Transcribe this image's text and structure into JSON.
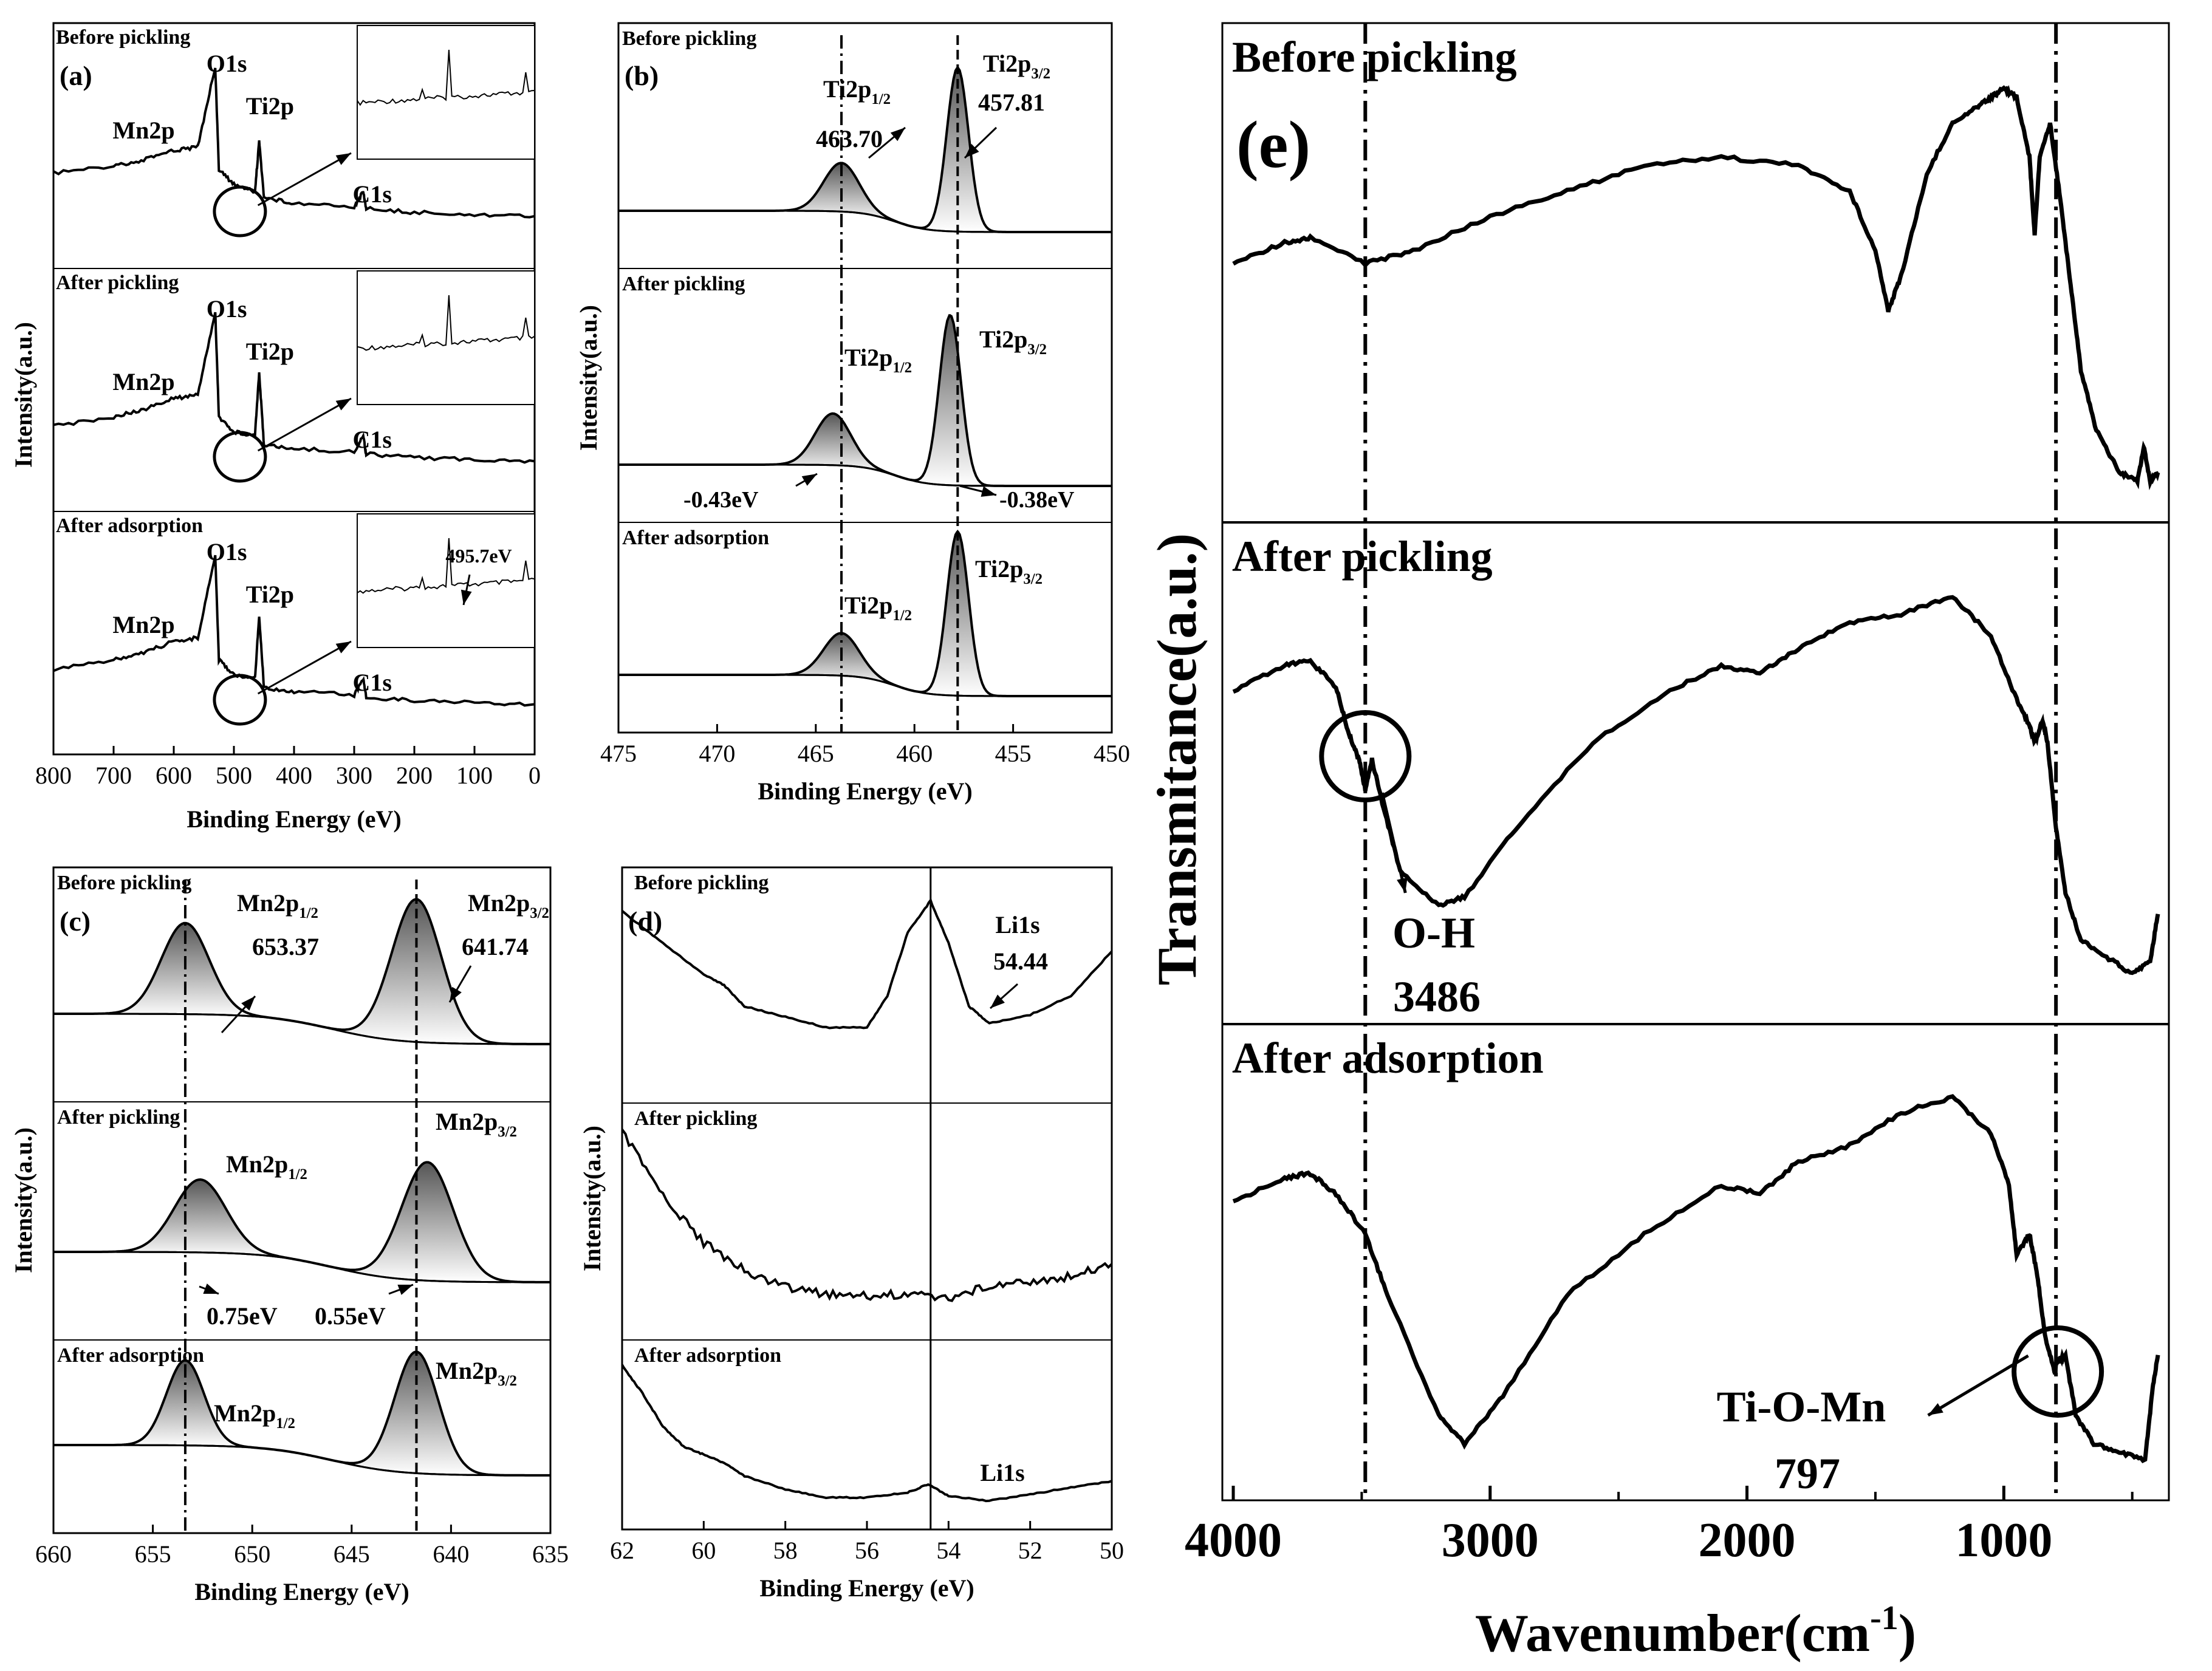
{
  "figure": {
    "background": "#ffffff",
    "ink": "#000000",
    "peak_fill_dark": "#555555"
  },
  "chart_data": [
    {
      "id": "a",
      "type": "line",
      "panel_label": "(a)",
      "xlabel": "Binding Energy (eV)",
      "ylabel": "Intensity(a.u.)",
      "xlim": [
        800,
        0
      ],
      "ticks": [
        "800",
        "700",
        "600",
        "500",
        "400",
        "300",
        "200",
        "100",
        "0"
      ],
      "series": [
        {
          "name": "Before pickling",
          "peaks": [
            "Mn2p",
            "O1s",
            "Ti2p",
            "C1s"
          ],
          "inset": "",
          "values": [
            [
              800,
              0.38
            ],
            [
              700,
              0.42
            ],
            [
              650,
              0.45
            ],
            [
              600,
              0.5
            ],
            [
              560,
              0.52
            ],
            [
              531,
              0.95
            ],
            [
              525,
              0.4
            ],
            [
              500,
              0.32
            ],
            [
              465,
              0.28
            ],
            [
              458,
              0.55
            ],
            [
              450,
              0.25
            ],
            [
              400,
              0.22
            ],
            [
              300,
              0.2
            ],
            [
              285,
              0.28
            ],
            [
              280,
              0.19
            ],
            [
              200,
              0.17
            ],
            [
              100,
              0.16
            ],
            [
              0,
              0.15
            ]
          ]
        },
        {
          "name": "After pickling",
          "peaks": [
            "Mn2p",
            "O1s",
            "Ti2p",
            "C1s"
          ],
          "inset": "",
          "values": [
            [
              800,
              0.33
            ],
            [
              700,
              0.38
            ],
            [
              650,
              0.42
            ],
            [
              600,
              0.48
            ],
            [
              560,
              0.5
            ],
            [
              531,
              0.95
            ],
            [
              525,
              0.38
            ],
            [
              500,
              0.3
            ],
            [
              465,
              0.28
            ],
            [
              458,
              0.62
            ],
            [
              450,
              0.23
            ],
            [
              400,
              0.21
            ],
            [
              300,
              0.19
            ],
            [
              285,
              0.28
            ],
            [
              280,
              0.18
            ],
            [
              200,
              0.16
            ],
            [
              100,
              0.15
            ],
            [
              0,
              0.14
            ]
          ]
        },
        {
          "name": "After adsorption",
          "peaks": [
            "Mn2p",
            "O1s",
            "Ti2p",
            "C1s"
          ],
          "inset": "495.7eV",
          "values": [
            [
              800,
              0.33
            ],
            [
              700,
              0.38
            ],
            [
              650,
              0.42
            ],
            [
              600,
              0.48
            ],
            [
              560,
              0.5
            ],
            [
              531,
              0.95
            ],
            [
              525,
              0.38
            ],
            [
              500,
              0.3
            ],
            [
              465,
              0.28
            ],
            [
              458,
              0.62
            ],
            [
              450,
              0.23
            ],
            [
              400,
              0.21
            ],
            [
              300,
              0.19
            ],
            [
              285,
              0.28
            ],
            [
              280,
              0.18
            ],
            [
              200,
              0.16
            ],
            [
              100,
              0.15
            ],
            [
              0,
              0.14
            ]
          ]
        }
      ]
    },
    {
      "id": "b",
      "type": "line",
      "panel_label": "(b)",
      "xlabel": "Binding Energy (eV)",
      "ylabel": "Intensity(a.u.)",
      "xlim": [
        475,
        450
      ],
      "ticks": [
        "475",
        "470",
        "465",
        "460",
        "455",
        "450"
      ],
      "reference_lines": [
        463.7,
        457.81
      ],
      "series": [
        {
          "name": "Before pickling",
          "peak_labels": [
            "Ti2p",
            "1/2",
            "Ti2p",
            "3/2"
          ],
          "peak_values": [
            "463.70",
            "457.81"
          ],
          "peak_positions": [
            463.7,
            457.81
          ]
        },
        {
          "name": "After pickling",
          "peak_labels": [
            "Ti2p",
            "1/2",
            "Ti2p",
            "3/2"
          ],
          "shifts": [
            "-0.43eV",
            "-0.38eV"
          ],
          "peak_positions": [
            464.13,
            458.19
          ]
        },
        {
          "name": "After adsorption",
          "peak_labels": [
            "Ti2p",
            "1/2",
            "Ti2p",
            "3/2"
          ],
          "peak_positions": [
            463.7,
            457.81
          ]
        }
      ]
    },
    {
      "id": "c",
      "type": "line",
      "panel_label": "(c)",
      "xlabel": "Binding Energy (eV)",
      "ylabel": "Intensity(a.u.)",
      "xlim": [
        660,
        635
      ],
      "ticks": [
        "660",
        "655",
        "650",
        "645",
        "640",
        "635"
      ],
      "reference_lines": [
        653.37,
        641.74
      ],
      "series": [
        {
          "name": "Before pickling",
          "peak_labels": [
            "Mn2p",
            "1/2",
            "Mn2p",
            "3/2"
          ],
          "peak_values": [
            "653.37",
            "641.74"
          ],
          "peak_positions": [
            653.37,
            641.74
          ]
        },
        {
          "name": "After pickling",
          "peak_labels": [
            "Mn2p",
            "1/2",
            "Mn2p",
            "3/2"
          ],
          "shifts": [
            "0.75eV",
            "0.55eV"
          ],
          "peak_positions": [
            652.62,
            641.19
          ]
        },
        {
          "name": "After adsorption",
          "peak_labels": [
            "Mn2p",
            "1/2",
            "Mn2p",
            "3/2"
          ],
          "peak_positions": [
            653.37,
            641.74
          ]
        }
      ]
    },
    {
      "id": "d",
      "type": "line",
      "panel_label": "(d)",
      "xlabel": "Binding Energy (eV)",
      "ylabel": "Intensity(a.u.)",
      "xlim": [
        62,
        50
      ],
      "ticks": [
        "62",
        "60",
        "58",
        "56",
        "54",
        "52",
        "50"
      ],
      "reference_lines": [
        54.44
      ],
      "series": [
        {
          "name": "Before pickling",
          "peak_label": "Li1s",
          "peak_value": "54.44",
          "values": [
            [
              62,
              0.85
            ],
            [
              61,
              0.7
            ],
            [
              60,
              0.55
            ],
            [
              59.5,
              0.5
            ],
            [
              59,
              0.4
            ],
            [
              58,
              0.35
            ],
            [
              57,
              0.3
            ],
            [
              56,
              0.3
            ],
            [
              55.5,
              0.45
            ],
            [
              55,
              0.75
            ],
            [
              54.44,
              0.9
            ],
            [
              54,
              0.7
            ],
            [
              53.5,
              0.4
            ],
            [
              53,
              0.32
            ],
            [
              52,
              0.36
            ],
            [
              51,
              0.45
            ],
            [
              50,
              0.66
            ]
          ]
        },
        {
          "name": "After pickling",
          "peak_label": "",
          "values": [
            [
              62,
              0.92
            ],
            [
              61,
              0.62
            ],
            [
              60,
              0.4
            ],
            [
              59,
              0.27
            ],
            [
              58,
              0.19
            ],
            [
              57,
              0.16
            ],
            [
              56,
              0.15
            ],
            [
              55,
              0.16
            ],
            [
              54,
              0.14
            ],
            [
              53,
              0.2
            ],
            [
              52,
              0.22
            ],
            [
              51,
              0.24
            ],
            [
              50,
              0.3
            ]
          ]
        },
        {
          "name": "After adsorption",
          "peak_label": "Li1s",
          "values": [
            [
              62,
              0.92
            ],
            [
              61.5,
              0.75
            ],
            [
              61,
              0.55
            ],
            [
              60.5,
              0.43
            ],
            [
              60,
              0.38
            ],
            [
              59.5,
              0.33
            ],
            [
              59,
              0.25
            ],
            [
              58,
              0.17
            ],
            [
              57,
              0.12
            ],
            [
              56,
              0.12
            ],
            [
              55,
              0.15
            ],
            [
              54.5,
              0.2
            ],
            [
              54,
              0.13
            ],
            [
              53,
              0.1
            ],
            [
              52,
              0.14
            ],
            [
              51,
              0.18
            ],
            [
              50,
              0.22
            ]
          ]
        }
      ]
    },
    {
      "id": "e",
      "type": "line",
      "panel_label": "(e)",
      "xlabel": "Wavenumber(cm",
      "xlabel_superscript": "-1",
      "xlabel_suffix": ")",
      "ylabel": "Transmitance(a.u.)",
      "xlim": [
        4000,
        400
      ],
      "ticks": [
        "4000",
        "3000",
        "2000",
        "1000"
      ],
      "reference_lines": [
        3486,
        797
      ],
      "annotations": [
        {
          "label": "O-H",
          "value": "3486"
        },
        {
          "label": "Ti-O-Mn",
          "value": "797"
        }
      ],
      "series": [
        {
          "name": "Before pickling",
          "values": [
            [
              4000,
              0.55
            ],
            [
              3800,
              0.6
            ],
            [
              3700,
              0.61
            ],
            [
              3486,
              0.55
            ],
            [
              3300,
              0.58
            ],
            [
              3000,
              0.66
            ],
            [
              2700,
              0.72
            ],
            [
              2400,
              0.78
            ],
            [
              2100,
              0.8
            ],
            [
              1800,
              0.78
            ],
            [
              1600,
              0.72
            ],
            [
              1500,
              0.58
            ],
            [
              1450,
              0.44
            ],
            [
              1400,
              0.52
            ],
            [
              1300,
              0.76
            ],
            [
              1200,
              0.88
            ],
            [
              1100,
              0.92
            ],
            [
              1050,
              0.94
            ],
            [
              1000,
              0.96
            ],
            [
              950,
              0.94
            ],
            [
              900,
              0.8
            ],
            [
              880,
              0.62
            ],
            [
              860,
              0.8
            ],
            [
              820,
              0.88
            ],
            [
              780,
              0.7
            ],
            [
              740,
              0.5
            ],
            [
              700,
              0.3
            ],
            [
              640,
              0.16
            ],
            [
              550,
              0.06
            ],
            [
              480,
              0.04
            ],
            [
              455,
              0.12
            ],
            [
              430,
              0.04
            ],
            [
              400,
              0.06
            ]
          ]
        },
        {
          "name": "After pickling",
          "values": [
            [
              4000,
              0.72
            ],
            [
              3800,
              0.78
            ],
            [
              3700,
              0.79
            ],
            [
              3600,
              0.73
            ],
            [
              3550,
              0.62
            ],
            [
              3510,
              0.56
            ],
            [
              3486,
              0.49
            ],
            [
              3460,
              0.56
            ],
            [
              3420,
              0.46
            ],
            [
              3350,
              0.3
            ],
            [
              3200,
              0.22
            ],
            [
              3100,
              0.24
            ],
            [
              2900,
              0.4
            ],
            [
              2600,
              0.6
            ],
            [
              2300,
              0.72
            ],
            [
              2100,
              0.78
            ],
            [
              1950,
              0.76
            ],
            [
              1800,
              0.82
            ],
            [
              1600,
              0.88
            ],
            [
              1400,
              0.9
            ],
            [
              1200,
              0.94
            ],
            [
              1050,
              0.85
            ],
            [
              950,
              0.7
            ],
            [
              900,
              0.64
            ],
            [
              880,
              0.6
            ],
            [
              850,
              0.65
            ],
            [
              830,
              0.6
            ],
            [
              797,
              0.4
            ],
            [
              760,
              0.25
            ],
            [
              700,
              0.14
            ],
            [
              600,
              0.1
            ],
            [
              500,
              0.06
            ],
            [
              430,
              0.09
            ],
            [
              400,
              0.2
            ]
          ]
        },
        {
          "name": "After adsorption",
          "values": [
            [
              4000,
              0.68
            ],
            [
              3800,
              0.74
            ],
            [
              3700,
              0.75
            ],
            [
              3600,
              0.7
            ],
            [
              3486,
              0.6
            ],
            [
              3400,
              0.45
            ],
            [
              3200,
              0.15
            ],
            [
              3100,
              0.08
            ],
            [
              2950,
              0.2
            ],
            [
              2700,
              0.45
            ],
            [
              2400,
              0.6
            ],
            [
              2100,
              0.72
            ],
            [
              1950,
              0.7
            ],
            [
              1800,
              0.78
            ],
            [
              1600,
              0.82
            ],
            [
              1400,
              0.9
            ],
            [
              1200,
              0.94
            ],
            [
              1050,
              0.85
            ],
            [
              980,
              0.72
            ],
            [
              950,
              0.55
            ],
            [
              900,
              0.6
            ],
            [
              870,
              0.5
            ],
            [
              840,
              0.35
            ],
            [
              800,
              0.25
            ],
            [
              797,
              0.28
            ],
            [
              760,
              0.3
            ],
            [
              720,
              0.15
            ],
            [
              650,
              0.08
            ],
            [
              550,
              0.06
            ],
            [
              450,
              0.04
            ],
            [
              420,
              0.22
            ],
            [
              400,
              0.3
            ]
          ]
        }
      ]
    }
  ]
}
